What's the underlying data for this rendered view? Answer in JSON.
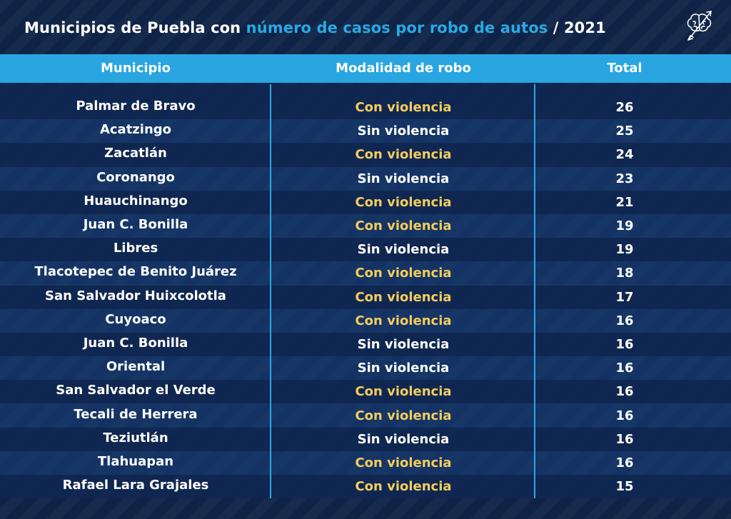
{
  "title": {
    "part1": "Municipios de Puebla con ",
    "highlight": "número de casos por robo de autos",
    "part2": " / 2021"
  },
  "colors": {
    "background": "#0f2346",
    "header": "#29a6e1",
    "highlight": "#2aa9e3",
    "con_violencia": "#f5cc5e",
    "sin_violencia": "#ffffff"
  },
  "logo_icon": "brain-icon",
  "chart_data": {
    "type": "table",
    "columns": [
      "Municipio",
      "Modalidad de robo",
      "Total"
    ],
    "rows": [
      {
        "municipio": "Palmar de Bravo",
        "modalidad": "Con violencia",
        "total": "26"
      },
      {
        "municipio": "Acatzingo",
        "modalidad": "Sin violencia",
        "total": "25"
      },
      {
        "municipio": "Zacatlán",
        "modalidad": "Con violencia",
        "total": "24"
      },
      {
        "municipio": "Coronango",
        "modalidad": "Sin violencia",
        "total": "23"
      },
      {
        "municipio": "Huauchinango",
        "modalidad": "Con violencia",
        "total": "21"
      },
      {
        "municipio": "Juan C. Bonilla",
        "modalidad": "Con violencia",
        "total": "19"
      },
      {
        "municipio": "Libres",
        "modalidad": "Sin violencia",
        "total": "19"
      },
      {
        "municipio": "Tlacotepec de Benito Juárez",
        "modalidad": "Con violencia",
        "total": "18"
      },
      {
        "municipio": "San Salvador Huixcolotla",
        "modalidad": "Con violencia",
        "total": "17"
      },
      {
        "municipio": "Cuyoaco",
        "modalidad": "Con violencia",
        "total": "16"
      },
      {
        "municipio": "Juan C. Bonilla",
        "modalidad": "Sin violencia",
        "total": "16"
      },
      {
        "municipio": "Oriental",
        "modalidad": "Sin violencia",
        "total": "16"
      },
      {
        "municipio": "San Salvador el Verde",
        "modalidad": "Con violencia",
        "total": "16"
      },
      {
        "municipio": "Tecali de Herrera",
        "modalidad": "Con violencia",
        "total": "16"
      },
      {
        "municipio": "Teziutlán",
        "modalidad": "Sin violencia",
        "total": "16"
      },
      {
        "municipio": "Tlahuapan",
        "modalidad": "Con violencia",
        "total": "16"
      },
      {
        "municipio": "Rafael Lara Grajales",
        "modalidad": "Con violencia",
        "total": "15"
      }
    ]
  }
}
